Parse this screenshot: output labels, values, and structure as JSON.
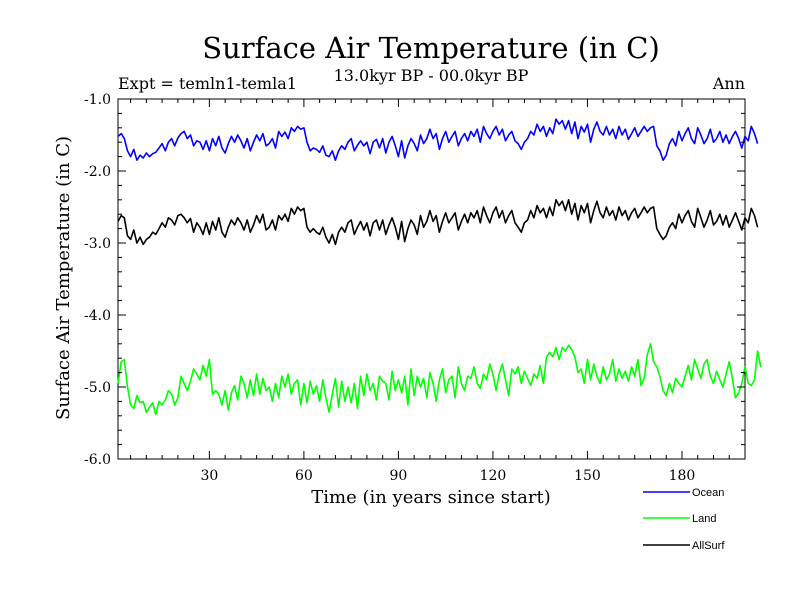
{
  "chart_data": {
    "type": "line",
    "title": "Surface Air Temperature (in C)",
    "left_label": "Expt = temln1-temla1",
    "subtitle": "13.0kyr BP - 00.0kyr BP",
    "right_label": "Ann",
    "xlabel": "Time (in years since start)",
    "ylabel": "Surface Air Temperature (in C)",
    "xlim": [
      1,
      200
    ],
    "ylim": [
      -6.0,
      -1.0
    ],
    "x_ticks": [
      30,
      60,
      90,
      120,
      150,
      180
    ],
    "x_tick_labels": [
      "30",
      "60",
      "90",
      "120",
      "150",
      "180"
    ],
    "y_ticks": [
      -1.0,
      -2.0,
      -3.0,
      -4.0,
      -5.0,
      -6.0
    ],
    "y_tick_labels": [
      "-1.0",
      "-2.0",
      "-3.0",
      "-4.0",
      "-5.0",
      "-6.0"
    ],
    "x_start": 1,
    "x_step": 1,
    "series": [
      {
        "name": "Ocean",
        "color": "#0000ff",
        "values": [
          -1.52,
          -1.48,
          -1.55,
          -1.72,
          -1.8,
          -1.7,
          -1.85,
          -1.78,
          -1.82,
          -1.75,
          -1.8,
          -1.76,
          -1.74,
          -1.68,
          -1.62,
          -1.72,
          -1.6,
          -1.55,
          -1.65,
          -1.54,
          -1.48,
          -1.45,
          -1.55,
          -1.5,
          -1.65,
          -1.58,
          -1.6,
          -1.7,
          -1.58,
          -1.72,
          -1.55,
          -1.65,
          -1.52,
          -1.68,
          -1.75,
          -1.62,
          -1.52,
          -1.6,
          -1.5,
          -1.58,
          -1.68,
          -1.55,
          -1.72,
          -1.6,
          -1.5,
          -1.58,
          -1.48,
          -1.65,
          -1.62,
          -1.55,
          -1.68,
          -1.45,
          -1.52,
          -1.46,
          -1.55,
          -1.4,
          -1.45,
          -1.38,
          -1.42,
          -1.4,
          -1.6,
          -1.72,
          -1.68,
          -1.7,
          -1.74,
          -1.65,
          -1.78,
          -1.8,
          -1.72,
          -1.85,
          -1.72,
          -1.65,
          -1.7,
          -1.6,
          -1.55,
          -1.72,
          -1.64,
          -1.58,
          -1.65,
          -1.6,
          -1.76,
          -1.6,
          -1.56,
          -1.68,
          -1.55,
          -1.75,
          -1.6,
          -1.52,
          -1.65,
          -1.8,
          -1.58,
          -1.82,
          -1.65,
          -1.55,
          -1.62,
          -1.72,
          -1.5,
          -1.62,
          -1.55,
          -1.42,
          -1.55,
          -1.48,
          -1.7,
          -1.55,
          -1.45,
          -1.6,
          -1.52,
          -1.45,
          -1.65,
          -1.55,
          -1.48,
          -1.58,
          -1.45,
          -1.52,
          -1.42,
          -1.6,
          -1.38,
          -1.48,
          -1.55,
          -1.45,
          -1.38,
          -1.5,
          -1.42,
          -1.58,
          -1.5,
          -1.45,
          -1.58,
          -1.62,
          -1.7,
          -1.6,
          -1.55,
          -1.45,
          -1.5,
          -1.35,
          -1.45,
          -1.38,
          -1.52,
          -1.4,
          -1.48,
          -1.28,
          -1.35,
          -1.3,
          -1.42,
          -1.3,
          -1.48,
          -1.32,
          -1.55,
          -1.38,
          -1.46,
          -1.35,
          -1.6,
          -1.42,
          -1.32,
          -1.45,
          -1.5,
          -1.38,
          -1.5,
          -1.42,
          -1.55,
          -1.38,
          -1.5,
          -1.42,
          -1.56,
          -1.48,
          -1.4,
          -1.52,
          -1.45,
          -1.38,
          -1.45,
          -1.4,
          -1.38,
          -1.65,
          -1.72,
          -1.85,
          -1.78,
          -1.62,
          -1.55,
          -1.65,
          -1.45,
          -1.58,
          -1.48,
          -1.4,
          -1.55,
          -1.62,
          -1.4,
          -1.5,
          -1.62,
          -1.55,
          -1.42,
          -1.6,
          -1.55,
          -1.45,
          -1.6,
          -1.5,
          -1.62,
          -1.52,
          -1.45,
          -1.55,
          -1.68,
          -1.52,
          -1.58,
          -1.38,
          -1.48,
          -1.62
        ]
      },
      {
        "name": "Land",
        "color": "#00ff00",
        "values": [
          -4.95,
          -4.65,
          -4.62,
          -5.0,
          -5.25,
          -5.3,
          -5.12,
          -5.22,
          -5.2,
          -5.35,
          -5.28,
          -5.22,
          -5.38,
          -5.2,
          -5.25,
          -5.18,
          -5.05,
          -5.1,
          -5.25,
          -5.15,
          -4.85,
          -4.95,
          -5.05,
          -4.92,
          -4.75,
          -4.82,
          -4.9,
          -4.7,
          -4.85,
          -4.62,
          -5.1,
          -5.05,
          -5.1,
          -5.25,
          -5.05,
          -5.32,
          -5.08,
          -4.98,
          -5.18,
          -4.85,
          -4.95,
          -5.15,
          -4.9,
          -5.12,
          -4.82,
          -5.1,
          -4.88,
          -5.05,
          -5.0,
          -5.2,
          -4.95,
          -5.15,
          -4.85,
          -5.0,
          -4.82,
          -5.1,
          -4.95,
          -4.9,
          -5.25,
          -4.95,
          -5.22,
          -4.92,
          -5.1,
          -4.98,
          -5.2,
          -4.9,
          -5.15,
          -5.35,
          -5.1,
          -4.88,
          -5.28,
          -4.92,
          -5.2,
          -5.0,
          -5.22,
          -4.95,
          -5.3,
          -4.85,
          -5.12,
          -4.82,
          -5.05,
          -4.95,
          -5.18,
          -4.85,
          -4.92,
          -4.95,
          -5.18,
          -4.78,
          -5.05,
          -4.9,
          -5.08,
          -4.85,
          -5.25,
          -4.75,
          -5.12,
          -4.85,
          -5.0,
          -4.88,
          -5.15,
          -4.8,
          -4.95,
          -5.2,
          -4.9,
          -4.75,
          -5.08,
          -4.9,
          -4.85,
          -5.15,
          -4.72,
          -4.95,
          -5.05,
          -4.85,
          -4.88,
          -4.72,
          -4.95,
          -5.02,
          -4.82,
          -4.9,
          -4.68,
          -4.82,
          -5.05,
          -4.82,
          -4.68,
          -4.9,
          -5.12,
          -4.75,
          -4.82,
          -4.72,
          -4.95,
          -4.78,
          -4.88,
          -4.98,
          -4.82,
          -4.88,
          -4.7,
          -4.95,
          -4.58,
          -4.52,
          -4.58,
          -4.45,
          -4.62,
          -4.45,
          -4.5,
          -4.42,
          -4.48,
          -4.58,
          -4.8,
          -4.75,
          -4.95,
          -4.62,
          -4.9,
          -4.68,
          -4.85,
          -4.95,
          -4.72,
          -4.9,
          -4.82,
          -4.62,
          -4.92,
          -4.75,
          -4.88,
          -4.78,
          -4.92,
          -4.72,
          -4.85,
          -4.62,
          -4.98,
          -4.88,
          -4.55,
          -4.4,
          -4.65,
          -4.72,
          -4.85,
          -5.05,
          -5.12,
          -4.95,
          -5.08,
          -4.88,
          -4.95,
          -5.0,
          -4.85,
          -4.7,
          -4.9,
          -4.62,
          -4.75,
          -4.88,
          -4.68,
          -4.62,
          -4.85,
          -4.95,
          -4.78,
          -4.9,
          -5.0,
          -4.82,
          -4.65,
          -4.88,
          -5.15,
          -5.08,
          -4.95,
          -4.72,
          -4.95,
          -4.98,
          -4.9,
          -4.5,
          -4.72
        ]
      },
      {
        "name": "AllSurf",
        "color": "#000000",
        "values": [
          -2.7,
          -2.62,
          -2.65,
          -2.9,
          -2.95,
          -2.82,
          -3.0,
          -2.92,
          -3.02,
          -2.95,
          -2.92,
          -2.85,
          -2.88,
          -2.8,
          -2.72,
          -2.78,
          -2.65,
          -2.68,
          -2.75,
          -2.62,
          -2.6,
          -2.65,
          -2.72,
          -2.66,
          -2.85,
          -2.72,
          -2.78,
          -2.88,
          -2.72,
          -2.88,
          -2.7,
          -2.82,
          -2.65,
          -2.85,
          -2.92,
          -2.78,
          -2.68,
          -2.75,
          -2.65,
          -2.72,
          -2.82,
          -2.68,
          -2.85,
          -2.75,
          -2.62,
          -2.72,
          -2.6,
          -2.82,
          -2.78,
          -2.68,
          -2.82,
          -2.62,
          -2.68,
          -2.6,
          -2.7,
          -2.52,
          -2.6,
          -2.5,
          -2.55,
          -2.52,
          -2.78,
          -2.85,
          -2.8,
          -2.85,
          -2.88,
          -2.78,
          -2.92,
          -3.0,
          -2.88,
          -3.02,
          -2.85,
          -2.78,
          -2.85,
          -2.72,
          -2.68,
          -2.88,
          -2.78,
          -2.7,
          -2.82,
          -2.72,
          -2.9,
          -2.72,
          -2.68,
          -2.82,
          -2.68,
          -2.88,
          -2.75,
          -2.65,
          -2.78,
          -2.95,
          -2.7,
          -2.98,
          -2.8,
          -2.68,
          -2.75,
          -2.88,
          -2.62,
          -2.78,
          -2.7,
          -2.55,
          -2.7,
          -2.62,
          -2.85,
          -2.7,
          -2.58,
          -2.72,
          -2.65,
          -2.58,
          -2.82,
          -2.7,
          -2.6,
          -2.72,
          -2.58,
          -2.65,
          -2.55,
          -2.72,
          -2.5,
          -2.62,
          -2.72,
          -2.58,
          -2.5,
          -2.65,
          -2.55,
          -2.72,
          -2.62,
          -2.55,
          -2.72,
          -2.78,
          -2.85,
          -2.72,
          -2.68,
          -2.55,
          -2.65,
          -2.48,
          -2.58,
          -2.52,
          -2.65,
          -2.5,
          -2.62,
          -2.4,
          -2.48,
          -2.42,
          -2.55,
          -2.4,
          -2.6,
          -2.45,
          -2.68,
          -2.48,
          -2.58,
          -2.45,
          -2.72,
          -2.55,
          -2.42,
          -2.58,
          -2.65,
          -2.5,
          -2.62,
          -2.55,
          -2.68,
          -2.5,
          -2.62,
          -2.55,
          -2.68,
          -2.58,
          -2.52,
          -2.65,
          -2.58,
          -2.5,
          -2.58,
          -2.52,
          -2.5,
          -2.8,
          -2.88,
          -2.95,
          -2.9,
          -2.78,
          -2.72,
          -2.8,
          -2.6,
          -2.72,
          -2.62,
          -2.55,
          -2.7,
          -2.78,
          -2.52,
          -2.65,
          -2.78,
          -2.68,
          -2.55,
          -2.75,
          -2.7,
          -2.6,
          -2.75,
          -2.62,
          -2.78,
          -2.68,
          -2.58,
          -2.7,
          -2.82,
          -2.65,
          -2.72,
          -2.52,
          -2.62,
          -2.78
        ]
      }
    ]
  }
}
